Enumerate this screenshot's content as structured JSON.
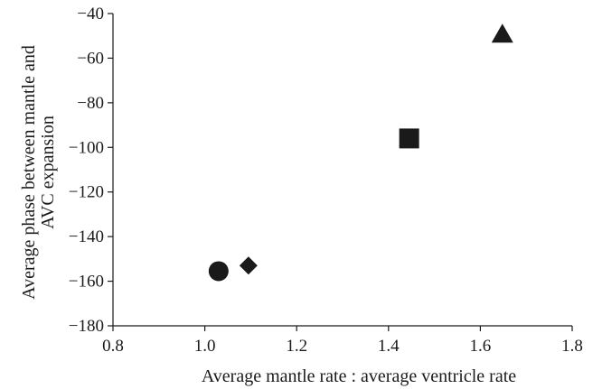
{
  "chart_data": {
    "type": "scatter",
    "title": "",
    "xlabel": "Average mantle rate : average ventricle rate",
    "ylabel_lines": [
      "Average phase between mantle and",
      "AVC expansion"
    ],
    "xlim": [
      0.8,
      1.8
    ],
    "ylim": [
      -180,
      -40
    ],
    "x_ticks": [
      0.8,
      1.0,
      1.2,
      1.4,
      1.6,
      1.8
    ],
    "x_tick_labels": [
      "0.8",
      "1.0",
      "1.2",
      "1.4",
      "1.6",
      "1.8"
    ],
    "y_ticks": [
      -40,
      -60,
      -80,
      -100,
      -120,
      -140,
      -160,
      -180
    ],
    "y_tick_labels": [
      "−40",
      "−60",
      "−80",
      "−100",
      "−120",
      "−140",
      "−160",
      "−180"
    ],
    "grid": false,
    "legend": false,
    "marker_color": "#1a1a1a",
    "points": [
      {
        "x": 1.03,
        "y": -155.5,
        "marker": "circle"
      },
      {
        "x": 1.095,
        "y": -153,
        "marker": "diamond"
      },
      {
        "x": 1.445,
        "y": -96,
        "marker": "square"
      },
      {
        "x": 1.648,
        "y": -49,
        "marker": "triangle"
      }
    ]
  }
}
